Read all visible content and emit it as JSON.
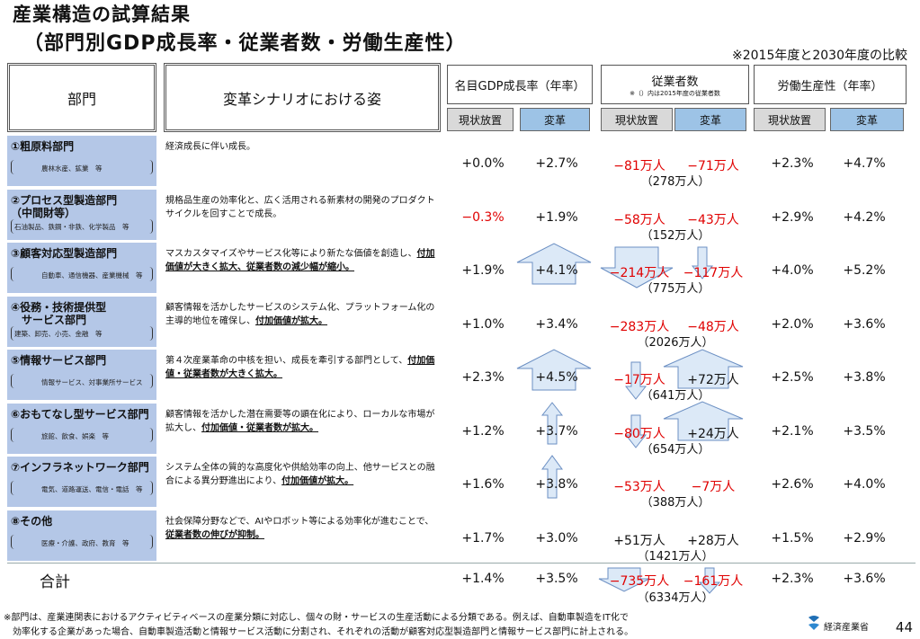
{
  "title_line1": "産業構造の試算結果",
  "title_line2": "（部門別GDP成長率・従業者数・労働生産性）",
  "compare_note": "※2015年度と2030年度の比較",
  "headers": {
    "sector": "部門",
    "scenario": "変革シナリオにおける姿",
    "gdp": "名目GDP成長率（年率）",
    "employment": "従業者数",
    "employment_note": "※（）内は2015年度の従業者数",
    "productivity": "労働生産性（年率）",
    "status_quo": "現状放置",
    "reform": "変革"
  },
  "rows": [
    {
      "name": "①粗原料部門",
      "sub": "農林水産、鉱業　等",
      "desc": "経済成長に伴い成長。",
      "desc_bold": "",
      "gdp_sq": "+0.0%",
      "gdp_rf": "+2.7%",
      "emp_sq": "−81万人",
      "emp_rf": "−71万人",
      "emp_base": "（278万人）",
      "prod_sq": "+2.3%",
      "prod_rf": "+4.7%",
      "gdp_sq_neg": false,
      "emp_sq_neg": true,
      "emp_rf_neg": true
    },
    {
      "name": "②プロセス型製造部門",
      "name2": "（中間財等）",
      "sub": "石油製品、鉄鋼・非鉄、化学製品　等",
      "desc": "規格品生産の効率化と、広く活用される新素材の開発のプロダクトサイクルを回すことで成長。",
      "desc_bold": "",
      "gdp_sq": "−0.3%",
      "gdp_rf": "+1.9%",
      "emp_sq": "−58万人",
      "emp_rf": "−43万人",
      "emp_base": "（152万人）",
      "prod_sq": "+2.9%",
      "prod_rf": "+4.2%",
      "gdp_sq_neg": true,
      "emp_sq_neg": true,
      "emp_rf_neg": true
    },
    {
      "name": "③顧客対応型製造部門",
      "sub": "自動車、通信機器、産業機械　等",
      "desc": "マスカスタマイズやサービス化等により新たな価値を創造し、",
      "desc_bold": "付加価値が大きく拡大、従業者数の減少幅が縮小。",
      "gdp_sq": "+1.9%",
      "gdp_rf": "+4.1%",
      "emp_sq": "−214万人",
      "emp_rf": "−117万人",
      "emp_base": "（775万人）",
      "prod_sq": "+4.0%",
      "prod_rf": "+5.2%",
      "gdp_sq_neg": false,
      "emp_sq_neg": true,
      "emp_rf_neg": true
    },
    {
      "name": "④役務・技術提供型",
      "name2": "　サービス部門",
      "sub": "建築、卸売、小売、金融　等",
      "desc": "顧客情報を活かしたサービスのシステム化、プラットフォーム化の主導的地位を確保し、",
      "desc_bold": "付加価値が拡大。",
      "gdp_sq": "+1.0%",
      "gdp_rf": "+3.4%",
      "emp_sq": "−283万人",
      "emp_rf": "−48万人",
      "emp_base": "（2026万人）",
      "prod_sq": "+2.0%",
      "prod_rf": "+3.6%",
      "gdp_sq_neg": false,
      "emp_sq_neg": true,
      "emp_rf_neg": true
    },
    {
      "name": "⑤情報サービス部門",
      "sub": "情報サービス、対事業所サービス",
      "desc": "第４次産業革命の中核を担い、成長を牽引する部門として、",
      "desc_bold": "付加価値・従業者数が大きく拡大。",
      "gdp_sq": "+2.3%",
      "gdp_rf": "+4.5%",
      "emp_sq": "−17万人",
      "emp_rf": "+72万人",
      "emp_base": "（641万人）",
      "prod_sq": "+2.5%",
      "prod_rf": "+3.8%",
      "gdp_sq_neg": false,
      "emp_sq_neg": true,
      "emp_rf_neg": false
    },
    {
      "name": "⑥おもてなし型サービス部門",
      "sub": "旅館、飲食、娯楽　等",
      "desc": "顧客情報を活かした潜在需要等の顕在化により、ローカルな市場が拡大し、",
      "desc_bold": "付加価値・従業者数が拡大。",
      "gdp_sq": "+1.2%",
      "gdp_rf": "+3.7%",
      "emp_sq": "−80万人",
      "emp_rf": "+24万人",
      "emp_base": "（654万人）",
      "prod_sq": "+2.1%",
      "prod_rf": "+3.5%",
      "gdp_sq_neg": false,
      "emp_sq_neg": true,
      "emp_rf_neg": false
    },
    {
      "name": "⑦インフラネットワーク部門",
      "sub": "電気、道路運送、電信・電話　等",
      "desc": "システム全体の質的な高度化や供給効率の向上、他サービスとの融合による異分野進出により、",
      "desc_bold": "付加価値が拡大。",
      "gdp_sq": "+1.6%",
      "gdp_rf": "+3.8%",
      "emp_sq": "−53万人",
      "emp_rf": "−7万人",
      "emp_base": "（388万人）",
      "prod_sq": "+2.6%",
      "prod_rf": "+4.0%",
      "gdp_sq_neg": false,
      "emp_sq_neg": true,
      "emp_rf_neg": true
    },
    {
      "name": "⑧その他",
      "sub": "医療・介護、政府、教育　等",
      "desc": "社会保障分野などで、AIやロボット等による効率化が進むことで、",
      "desc_bold": "従業者数の伸びが抑制。",
      "gdp_sq": "+1.7%",
      "gdp_rf": "+3.0%",
      "emp_sq": "+51万人",
      "emp_rf": "+28万人",
      "emp_base": "（1421万人）",
      "prod_sq": "+1.5%",
      "prod_rf": "+2.9%",
      "gdp_sq_neg": false,
      "emp_sq_neg": false,
      "emp_rf_neg": false
    }
  ],
  "total": {
    "label": "合計",
    "gdp_sq": "+1.4%",
    "gdp_rf": "+3.5%",
    "emp_sq": "−735万人",
    "emp_rf": "−161万人",
    "emp_base": "（6334万人）",
    "prod_sq": "+2.3%",
    "prod_rf": "+3.6%"
  },
  "footnote_line1": "※部門は、産業連関表におけるアクティビティベースの産業分類に対応し、個々の財・サービスの生産活動による分類である。例えば、自動車製造をIT化で",
  "footnote_line2": "　効率化する企業があった場合、自動車製造活動と情報サービス活動に分割され、それぞれの活動が顧客対応型製造部門と情報サービス部門に計上される。",
  "ministry": "経済産業省",
  "page_number": "44",
  "colors": {
    "negative": "#e00000",
    "band": "#b4c7e7",
    "reform_header": "#9dc3e6",
    "arrow_fill": "#dce9f7"
  }
}
